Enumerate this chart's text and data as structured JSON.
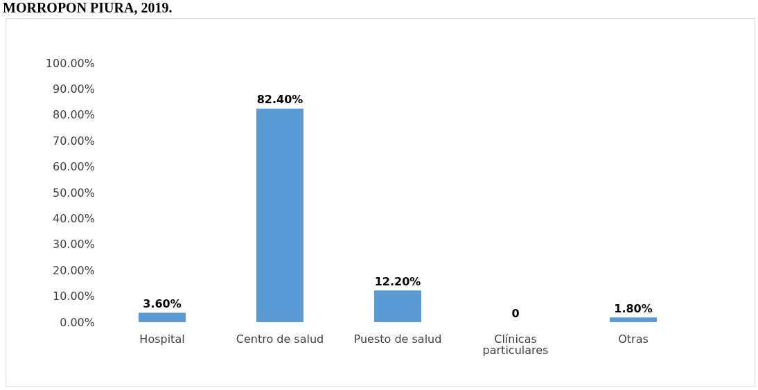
{
  "chart_data": {
    "type": "bar",
    "title": "MORROPON PIURA, 2019.",
    "categories": [
      "Hospital",
      "Centro de salud",
      "Puesto de salud",
      "Clínicas\nparticulares",
      "Otras"
    ],
    "values": [
      3.6,
      82.4,
      12.2,
      0,
      1.8
    ],
    "value_labels": [
      "3.60%",
      "82.40%",
      "12.20%",
      "0",
      "1.80%"
    ],
    "color": "#5b9bd5",
    "ylim": [
      0,
      100
    ],
    "yticks": [
      {
        "value": 0,
        "label": "0.00%"
      },
      {
        "value": 10,
        "label": "10.00%"
      },
      {
        "value": 20,
        "label": "20.00%"
      },
      {
        "value": 30,
        "label": "30.00%"
      },
      {
        "value": 40,
        "label": "40.00%"
      },
      {
        "value": 50,
        "label": "50.00%"
      },
      {
        "value": 60,
        "label": "60.00%"
      },
      {
        "value": 70,
        "label": "70.00%"
      },
      {
        "value": 80,
        "label": "80.00%"
      },
      {
        "value": 90,
        "label": "90.00%"
      },
      {
        "value": 100,
        "label": "100.00%"
      }
    ],
    "grid": false
  }
}
